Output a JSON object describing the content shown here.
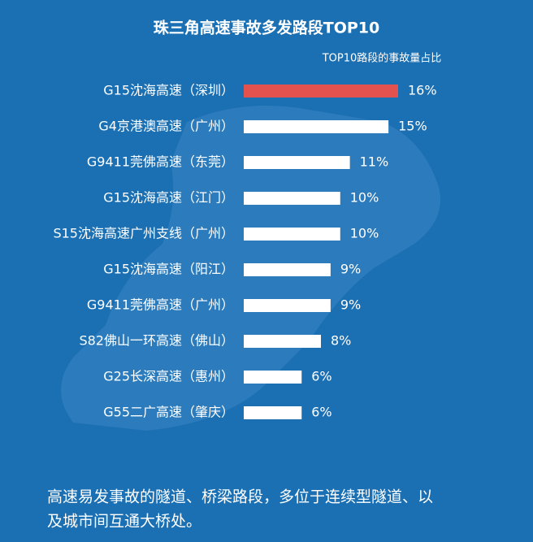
{
  "chart_data": {
    "type": "barh",
    "title": "珠三角高速事故多发路段TOP10",
    "subtitle": "TOP10路段的事故量占比",
    "categories": [
      "G15沈海高速（深圳）",
      "G4京港澳高速（广州）",
      "G9411莞佛高速（东莞）",
      "G15沈海高速（江门）",
      "S15沈海高速广州支线（广州）",
      "G15沈海高速（阳江）",
      "G9411莞佛高速（广州）",
      "S82佛山一环高速（佛山）",
      "G25长深高速（惠州）",
      "G55二广高速（肇庆）"
    ],
    "values": [
      16,
      15,
      11,
      10,
      10,
      9,
      9,
      8,
      6,
      6
    ],
    "value_labels": [
      "16%",
      "15%",
      "11%",
      "10%",
      "10%",
      "9%",
      "9%",
      "8%",
      "6%",
      "6%"
    ],
    "colors": [
      "#e4524f",
      "#ffffff",
      "#ffffff",
      "#ffffff",
      "#ffffff",
      "#ffffff",
      "#ffffff",
      "#ffffff",
      "#ffffff",
      "#ffffff"
    ]
  },
  "footer": [
    "高速易发事故的隧道、桥梁路段，多位于连续型隧道、以",
    "及城市间互通大桥处。"
  ]
}
